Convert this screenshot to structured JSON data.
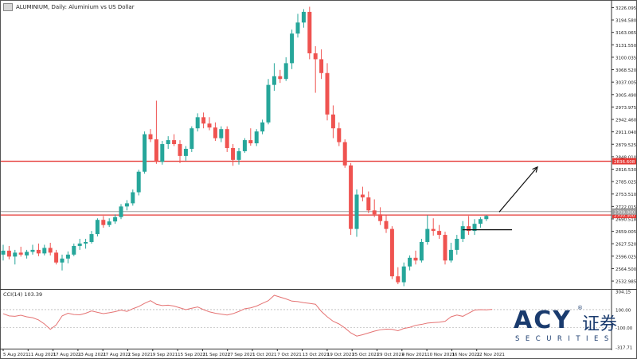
{
  "window": {
    "title": "ALUMINIUM, Daily: Aluminium vs US Dollar"
  },
  "cci": {
    "label": "CCI(14) 103.39",
    "axis_labels": [
      "304.15",
      "100.00",
      "-100.00",
      "-317.71"
    ]
  },
  "logo": {
    "main": "ACY",
    "cn": "证券",
    "sub": "SECURITIES",
    "reg": "®"
  },
  "chart_data": {
    "type": "candlestick",
    "title": "ALUMINIUM, Daily: Aluminium vs US Dollar",
    "price_axis": {
      "labels": [
        "3226.095",
        "3194.580",
        "3163.065",
        "3131.550",
        "3100.035",
        "3068.520",
        "3037.005",
        "3005.490",
        "2973.975",
        "2942.460",
        "2911.040",
        "2879.525",
        "2848.010",
        "2816.530",
        "2785.025",
        "2753.510",
        "2722.015",
        "2690.518",
        "2659.005",
        "2627.520",
        "2596.025",
        "2564.500",
        "2532.985"
      ],
      "ylim": [
        2515,
        3235
      ]
    },
    "date_labels": [
      "5 Aug 2021",
      "11 Aug 2021",
      "17 Aug 2021",
      "23 Aug 2021",
      "27 Aug 2021",
      "2 Sep 2021",
      "9 Sep 2021",
      "15 Sep 2021",
      "21 Sep 2021",
      "27 Sep 2021",
      "1 Oct 2021",
      "7 Oct 2021",
      "13 Oct 2021",
      "19 Oct 2021",
      "25 Oct 2021",
      "29 Oct 2021",
      "4 Nov 2021",
      "10 Nov 2021",
      "16 Nov 2021",
      "22 Nov 2021"
    ],
    "candles": [
      {
        "o": 2600,
        "h": 2625,
        "l": 2585,
        "c": 2610
      },
      {
        "o": 2610,
        "h": 2622,
        "l": 2588,
        "c": 2595
      },
      {
        "o": 2595,
        "h": 2612,
        "l": 2575,
        "c": 2605
      },
      {
        "o": 2605,
        "h": 2620,
        "l": 2595,
        "c": 2600
      },
      {
        "o": 2598,
        "h": 2612,
        "l": 2590,
        "c": 2607
      },
      {
        "o": 2607,
        "h": 2625,
        "l": 2600,
        "c": 2612
      },
      {
        "o": 2612,
        "h": 2628,
        "l": 2596,
        "c": 2603
      },
      {
        "o": 2603,
        "h": 2625,
        "l": 2598,
        "c": 2617
      },
      {
        "o": 2617,
        "h": 2630,
        "l": 2598,
        "c": 2605
      },
      {
        "o": 2605,
        "h": 2612,
        "l": 2575,
        "c": 2580
      },
      {
        "o": 2580,
        "h": 2600,
        "l": 2560,
        "c": 2590
      },
      {
        "o": 2590,
        "h": 2608,
        "l": 2578,
        "c": 2600
      },
      {
        "o": 2600,
        "h": 2628,
        "l": 2596,
        "c": 2622
      },
      {
        "o": 2622,
        "h": 2640,
        "l": 2612,
        "c": 2628
      },
      {
        "o": 2628,
        "h": 2640,
        "l": 2615,
        "c": 2632
      },
      {
        "o": 2632,
        "h": 2660,
        "l": 2628,
        "c": 2652
      },
      {
        "o": 2652,
        "h": 2692,
        "l": 2646,
        "c": 2688
      },
      {
        "o": 2688,
        "h": 2698,
        "l": 2668,
        "c": 2675
      },
      {
        "o": 2675,
        "h": 2692,
        "l": 2670,
        "c": 2684
      },
      {
        "o": 2684,
        "h": 2702,
        "l": 2678,
        "c": 2695
      },
      {
        "o": 2695,
        "h": 2728,
        "l": 2690,
        "c": 2722
      },
      {
        "o": 2722,
        "h": 2738,
        "l": 2712,
        "c": 2730
      },
      {
        "o": 2730,
        "h": 2765,
        "l": 2724,
        "c": 2758
      },
      {
        "o": 2758,
        "h": 2815,
        "l": 2750,
        "c": 2810
      },
      {
        "o": 2810,
        "h": 2912,
        "l": 2805,
        "c": 2905
      },
      {
        "o": 2905,
        "h": 2918,
        "l": 2885,
        "c": 2892
      },
      {
        "o": 2892,
        "h": 2990,
        "l": 2830,
        "c": 2835
      },
      {
        "o": 2835,
        "h": 2888,
        "l": 2828,
        "c": 2880
      },
      {
        "o": 2880,
        "h": 2900,
        "l": 2868,
        "c": 2890
      },
      {
        "o": 2890,
        "h": 2905,
        "l": 2875,
        "c": 2880
      },
      {
        "o": 2880,
        "h": 2890,
        "l": 2832,
        "c": 2850
      },
      {
        "o": 2850,
        "h": 2875,
        "l": 2838,
        "c": 2868
      },
      {
        "o": 2868,
        "h": 2925,
        "l": 2860,
        "c": 2920
      },
      {
        "o": 2920,
        "h": 2958,
        "l": 2912,
        "c": 2948
      },
      {
        "o": 2948,
        "h": 2960,
        "l": 2920,
        "c": 2932
      },
      {
        "o": 2932,
        "h": 2948,
        "l": 2915,
        "c": 2922
      },
      {
        "o": 2922,
        "h": 2935,
        "l": 2888,
        "c": 2895
      },
      {
        "o": 2895,
        "h": 2925,
        "l": 2885,
        "c": 2918
      },
      {
        "o": 2918,
        "h": 2925,
        "l": 2860,
        "c": 2870
      },
      {
        "o": 2870,
        "h": 2880,
        "l": 2825,
        "c": 2840
      },
      {
        "o": 2840,
        "h": 2870,
        "l": 2828,
        "c": 2862
      },
      {
        "o": 2862,
        "h": 2895,
        "l": 2858,
        "c": 2890
      },
      {
        "o": 2890,
        "h": 2920,
        "l": 2876,
        "c": 2882
      },
      {
        "o": 2882,
        "h": 2918,
        "l": 2875,
        "c": 2912
      },
      {
        "o": 2912,
        "h": 2942,
        "l": 2905,
        "c": 2935
      },
      {
        "o": 2935,
        "h": 3045,
        "l": 2930,
        "c": 3030
      },
      {
        "o": 3030,
        "h": 3085,
        "l": 3015,
        "c": 3052
      },
      {
        "o": 3052,
        "h": 3068,
        "l": 3035,
        "c": 3045
      },
      {
        "o": 3045,
        "h": 3100,
        "l": 3040,
        "c": 3085
      },
      {
        "o": 3085,
        "h": 3170,
        "l": 3070,
        "c": 3160
      },
      {
        "o": 3160,
        "h": 3210,
        "l": 3150,
        "c": 3188
      },
      {
        "o": 3188,
        "h": 3222,
        "l": 3175,
        "c": 3215
      },
      {
        "o": 3215,
        "h": 3228,
        "l": 3095,
        "c": 3110
      },
      {
        "o": 3110,
        "h": 3128,
        "l": 3010,
        "c": 3095
      },
      {
        "o": 3095,
        "h": 3120,
        "l": 3045,
        "c": 3060
      },
      {
        "o": 3060,
        "h": 3085,
        "l": 2940,
        "c": 2955
      },
      {
        "o": 2955,
        "h": 2978,
        "l": 2895,
        "c": 2920
      },
      {
        "o": 2920,
        "h": 2935,
        "l": 2875,
        "c": 2885
      },
      {
        "o": 2885,
        "h": 2892,
        "l": 2820,
        "c": 2826
      },
      {
        "o": 2826,
        "h": 2832,
        "l": 2650,
        "c": 2665
      },
      {
        "o": 2665,
        "h": 2765,
        "l": 2645,
        "c": 2752
      },
      {
        "o": 2752,
        "h": 2772,
        "l": 2735,
        "c": 2745
      },
      {
        "o": 2745,
        "h": 2760,
        "l": 2705,
        "c": 2712
      },
      {
        "o": 2712,
        "h": 2740,
        "l": 2695,
        "c": 2702
      },
      {
        "o": 2702,
        "h": 2720,
        "l": 2675,
        "c": 2685
      },
      {
        "o": 2685,
        "h": 2700,
        "l": 2655,
        "c": 2665
      },
      {
        "o": 2665,
        "h": 2672,
        "l": 2538,
        "c": 2545
      },
      {
        "o": 2545,
        "h": 2568,
        "l": 2525,
        "c": 2530
      },
      {
        "o": 2530,
        "h": 2580,
        "l": 2520,
        "c": 2570
      },
      {
        "o": 2570,
        "h": 2598,
        "l": 2560,
        "c": 2592
      },
      {
        "o": 2592,
        "h": 2610,
        "l": 2575,
        "c": 2585
      },
      {
        "o": 2585,
        "h": 2640,
        "l": 2580,
        "c": 2632
      },
      {
        "o": 2632,
        "h": 2700,
        "l": 2625,
        "c": 2665
      },
      {
        "o": 2665,
        "h": 2692,
        "l": 2648,
        "c": 2660
      },
      {
        "o": 2660,
        "h": 2675,
        "l": 2640,
        "c": 2650
      },
      {
        "o": 2650,
        "h": 2658,
        "l": 2575,
        "c": 2585
      },
      {
        "o": 2585,
        "h": 2630,
        "l": 2580,
        "c": 2612
      },
      {
        "o": 2612,
        "h": 2650,
        "l": 2600,
        "c": 2640
      },
      {
        "o": 2640,
        "h": 2685,
        "l": 2632,
        "c": 2672
      },
      {
        "o": 2672,
        "h": 2698,
        "l": 2650,
        "c": 2660
      },
      {
        "o": 2660,
        "h": 2690,
        "l": 2650,
        "c": 2678
      },
      {
        "o": 2678,
        "h": 2695,
        "l": 2668,
        "c": 2690
      },
      {
        "o": 2690,
        "h": 2700,
        "l": 2685,
        "c": 2698
      }
    ],
    "cci_values": [
      55,
      30,
      25,
      38,
      20,
      10,
      -15,
      -60,
      -120,
      -70,
      30,
      60,
      45,
      42,
      60,
      85,
      70,
      55,
      65,
      78,
      95,
      80,
      110,
      135,
      170,
      200,
      160,
      145,
      150,
      140,
      120,
      100,
      115,
      130,
      100,
      75,
      60,
      50,
      40,
      55,
      80,
      110,
      120,
      140,
      170,
      200,
      260,
      240,
      220,
      195,
      190,
      178,
      170,
      160,
      80,
      20,
      -30,
      -60,
      -105,
      -160,
      -195,
      -180,
      -160,
      -140,
      -125,
      -118,
      -120,
      -135,
      -110,
      -98,
      -75,
      -65,
      -50,
      -45,
      -40,
      -30,
      20,
      40,
      25,
      60,
      95,
      100,
      98,
      103
    ],
    "horizontal_lines": [
      {
        "price": 2836.6,
        "label": "2836.608",
        "color": "#e53935"
      },
      {
        "price": 2700.3,
        "label": "2700.300",
        "color": "#e53935"
      },
      {
        "price": 2709.0,
        "label": "2709.000",
        "color": "#9e9e9e"
      }
    ],
    "annotations": [
      {
        "type": "horizontal_segment",
        "price": 2663
      },
      {
        "type": "arrow",
        "direction": "up-right"
      }
    ],
    "colors": {
      "up": "#26a69a",
      "down": "#ef5350"
    }
  }
}
